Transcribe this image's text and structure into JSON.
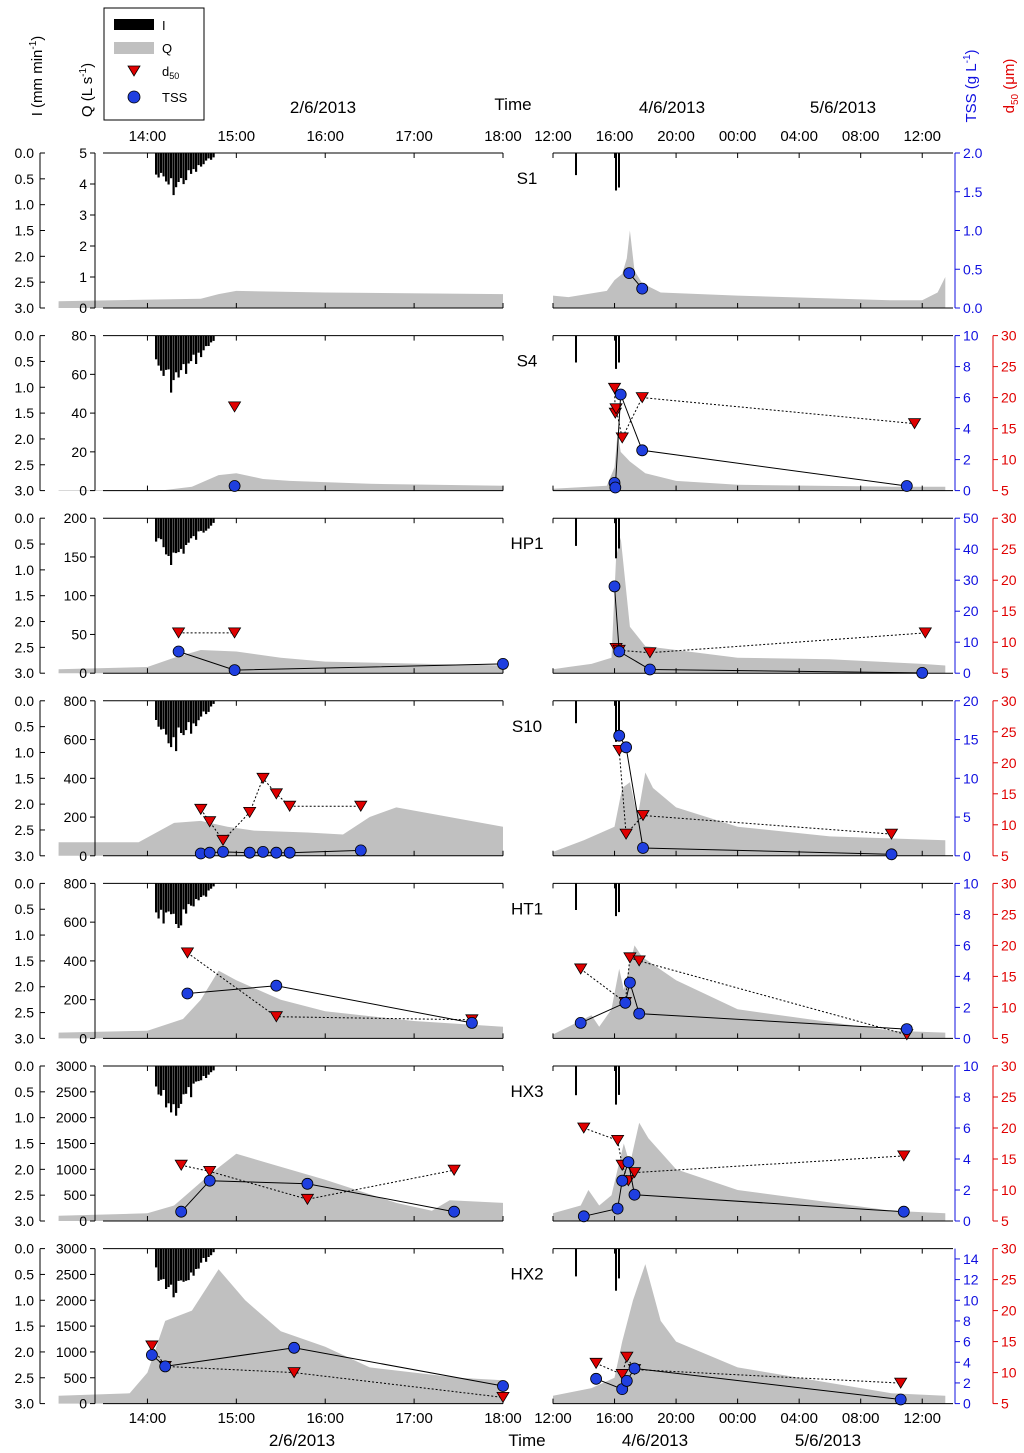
{
  "figure": {
    "dates_left": "2/6/2013",
    "dates_right_a": "4/6/2013",
    "dates_right_b": "5/6/2013",
    "time_label": "Time",
    "axis_labels": {
      "intensity": "I (mm min",
      "intensity_sup": "-1",
      "intensity_close": ")",
      "discharge": "Q (L s",
      "discharge_sup": "-1",
      "discharge_close": ")",
      "tss": "TSS (g L",
      "tss_sup": "-1",
      "tss_close": ")",
      "d50": "d",
      "d50_sub": "50",
      "d50_unit": " (μm)"
    },
    "legend": [
      {
        "key": "I",
        "label": "I"
      },
      {
        "key": "Q",
        "label": "Q"
      },
      {
        "key": "d50",
        "label": "d",
        "sub": "50"
      },
      {
        "key": "TSS",
        "label": "TSS"
      }
    ],
    "left_time_ticks": [
      "14:00",
      "15:00",
      "16:00",
      "17:00",
      "18:00"
    ],
    "right_time_ticks": [
      "12:00",
      "16:00",
      "20:00",
      "00:00",
      "04:00",
      "08:00",
      "12:00"
    ],
    "intensity_ticks": [
      "0.0",
      "0.5",
      "1.0",
      "1.5",
      "2.0",
      "2.5",
      "3.0"
    ],
    "colors": {
      "rain": "#000000",
      "flow": "#c0c0c0",
      "tss": "#1010e0",
      "d50": "#e00000"
    }
  },
  "chart_data": [
    {
      "type": "area",
      "site": "S1",
      "q_ticks": [
        "0",
        "1",
        "2",
        "3",
        "4",
        "5"
      ],
      "qmax": 5,
      "tss_ticks": [
        "0.0",
        "0.5",
        "1.0",
        "1.5",
        "2.0"
      ],
      "tssmax": 2,
      "d50_ticks": [],
      "tss_left": [],
      "tss_right": [
        [
          16.95,
          0.45
        ],
        [
          17.8,
          0.25
        ]
      ],
      "d50_left": [],
      "d50_right": [],
      "flow_left": [
        [
          13.0,
          0.22
        ],
        [
          14.6,
          0.3
        ],
        [
          14.8,
          0.45
        ],
        [
          15.0,
          0.55
        ],
        [
          16.0,
          0.5
        ],
        [
          18.0,
          0.45
        ]
      ],
      "flow_right": [
        [
          12.0,
          0.4
        ],
        [
          13.0,
          0.35
        ],
        [
          15.5,
          0.55
        ],
        [
          16.0,
          0.9
        ],
        [
          16.5,
          1.1
        ],
        [
          16.8,
          1.6
        ],
        [
          17.0,
          2.5
        ],
        [
          17.3,
          1.2
        ],
        [
          17.8,
          0.8
        ],
        [
          19.0,
          0.5
        ],
        [
          24.0,
          0.4
        ],
        [
          34.0,
          0.25
        ],
        [
          36.0,
          0.25
        ],
        [
          37.0,
          0.5
        ],
        [
          37.5,
          1.0
        ]
      ]
    },
    {
      "type": "area",
      "site": "S4",
      "q_ticks": [
        "0",
        "20",
        "40",
        "60",
        "80"
      ],
      "qmax": 80,
      "tss_ticks": [
        "0",
        "2",
        "4",
        "6",
        "8",
        "10"
      ],
      "tssmax": 10,
      "d50_ticks": [
        "5",
        "10",
        "15",
        "20",
        "25",
        "30"
      ],
      "tss_left": [
        [
          14.98,
          0.3
        ]
      ],
      "tss_right": [
        [
          16.0,
          0.5
        ],
        [
          16.05,
          0.2
        ],
        [
          16.4,
          6.2
        ],
        [
          17.8,
          2.6
        ],
        [
          35.0,
          0.3
        ]
      ],
      "d50_left": [
        [
          14.98,
          18.5
        ]
      ],
      "d50_right": [
        [
          16.0,
          21.5
        ],
        [
          16.05,
          17.5
        ],
        [
          16.1,
          18.2
        ],
        [
          16.5,
          13.5
        ],
        [
          17.8,
          20.0
        ],
        [
          35.5,
          15.8
        ]
      ],
      "flow_left": [
        [
          13.0,
          0.3
        ],
        [
          14.2,
          0.3
        ],
        [
          14.5,
          2.0
        ],
        [
          14.8,
          8.0
        ],
        [
          15.0,
          9.0
        ],
        [
          15.3,
          6.0
        ],
        [
          15.6,
          5.0
        ],
        [
          16.5,
          3.5
        ],
        [
          18.0,
          2.5
        ]
      ],
      "flow_right": [
        [
          12.0,
          1.0
        ],
        [
          15.5,
          2.5
        ],
        [
          16.0,
          12.0
        ],
        [
          16.2,
          30.0
        ],
        [
          16.4,
          20.0
        ],
        [
          17.0,
          15.0
        ],
        [
          18.0,
          9.0
        ],
        [
          20.0,
          5.0
        ],
        [
          24.0,
          3.0
        ],
        [
          34.0,
          2.0
        ],
        [
          37.5,
          2.0
        ]
      ]
    },
    {
      "type": "area",
      "site": "HP1",
      "q_ticks": [
        "0",
        "50",
        "100",
        "150",
        "200"
      ],
      "qmax": 200,
      "tss_ticks": [
        "0",
        "10",
        "20",
        "30",
        "40",
        "50"
      ],
      "tssmax": 50,
      "d50_ticks": [
        "5",
        "10",
        "15",
        "20",
        "25",
        "30"
      ],
      "tss_left": [
        [
          14.35,
          7.0
        ],
        [
          14.98,
          1.0
        ],
        [
          18.0,
          3.0
        ]
      ],
      "tss_right": [
        [
          16.0,
          28.0
        ],
        [
          16.3,
          7.0
        ],
        [
          18.3,
          1.2
        ],
        [
          36.0,
          0.1
        ]
      ],
      "d50_left": [
        [
          14.35,
          11.5
        ],
        [
          14.98,
          11.5
        ]
      ],
      "d50_right": [
        [
          16.1,
          9.0
        ],
        [
          16.3,
          8.7
        ],
        [
          18.3,
          8.3
        ],
        [
          36.2,
          11.5
        ]
      ],
      "flow_left": [
        [
          13.0,
          5.0
        ],
        [
          14.0,
          8.0
        ],
        [
          14.3,
          20.0
        ],
        [
          14.6,
          30.0
        ],
        [
          15.0,
          28.0
        ],
        [
          15.5,
          20.0
        ],
        [
          16.0,
          15.0
        ],
        [
          18.0,
          10.0
        ]
      ],
      "flow_right": [
        [
          12.0,
          5.0
        ],
        [
          13.0,
          8.0
        ],
        [
          14.5,
          12.0
        ],
        [
          15.8,
          20.0
        ],
        [
          16.1,
          150.0
        ],
        [
          16.4,
          175.0
        ],
        [
          17.0,
          60.0
        ],
        [
          18.0,
          35.0
        ],
        [
          24.0,
          20.0
        ],
        [
          30.0,
          18.0
        ],
        [
          36.0,
          12.0
        ],
        [
          37.5,
          10.0
        ]
      ]
    },
    {
      "type": "area",
      "site": "S10",
      "q_ticks": [
        "0",
        "200",
        "400",
        "600",
        "800"
      ],
      "qmax": 800,
      "tss_ticks": [
        "0",
        "5",
        "10",
        "15",
        "20"
      ],
      "tssmax": 20,
      "d50_ticks": [
        "5",
        "10",
        "15",
        "20",
        "25",
        "30"
      ],
      "tss_left": [
        [
          14.6,
          0.3
        ],
        [
          14.7,
          0.4
        ],
        [
          14.85,
          0.5
        ],
        [
          15.15,
          0.4
        ],
        [
          15.3,
          0.5
        ],
        [
          15.45,
          0.4
        ],
        [
          15.6,
          0.4
        ],
        [
          16.4,
          0.7
        ]
      ],
      "tss_right": [
        [
          16.3,
          15.5
        ],
        [
          16.75,
          14.0
        ],
        [
          17.85,
          1.0
        ],
        [
          34.0,
          0.2
        ]
      ],
      "d50_left": [
        [
          14.6,
          12.5
        ],
        [
          14.7,
          10.5
        ],
        [
          14.85,
          7.5
        ],
        [
          15.15,
          12.0
        ],
        [
          15.3,
          17.5
        ],
        [
          15.45,
          15.0
        ],
        [
          15.6,
          13.0
        ],
        [
          16.4,
          13.0
        ]
      ],
      "d50_right": [
        [
          16.3,
          22.0
        ],
        [
          16.75,
          8.5
        ],
        [
          17.85,
          11.5
        ],
        [
          34.0,
          8.5
        ]
      ],
      "flow_left": [
        [
          13.0,
          70.0
        ],
        [
          13.9,
          70.0
        ],
        [
          14.3,
          170.0
        ],
        [
          14.6,
          180.0
        ],
        [
          14.9,
          150.0
        ],
        [
          15.2,
          130.0
        ],
        [
          15.8,
          120.0
        ],
        [
          16.2,
          110.0
        ],
        [
          16.5,
          200.0
        ],
        [
          16.8,
          250.0
        ],
        [
          18.0,
          150.0
        ]
      ],
      "flow_right": [
        [
          12.0,
          20.0
        ],
        [
          14.0,
          80.0
        ],
        [
          16.0,
          150.0
        ],
        [
          16.5,
          350.0
        ],
        [
          17.0,
          380.0
        ],
        [
          17.5,
          200.0
        ],
        [
          18.0,
          430.0
        ],
        [
          18.5,
          350.0
        ],
        [
          20.0,
          250.0
        ],
        [
          24.0,
          150.0
        ],
        [
          30.0,
          100.0
        ],
        [
          37.5,
          80.0
        ]
      ]
    },
    {
      "type": "area",
      "site": "HT1",
      "q_ticks": [
        "0",
        "200",
        "400",
        "600",
        "800"
      ],
      "qmax": 800,
      "tss_ticks": [
        "0",
        "2",
        "4",
        "6",
        "8",
        "10"
      ],
      "tssmax": 10,
      "d50_ticks": [
        "5",
        "10",
        "15",
        "20",
        "25",
        "30"
      ],
      "tss_left": [
        [
          14.45,
          2.9
        ],
        [
          15.45,
          3.4
        ],
        [
          17.65,
          1.0
        ]
      ],
      "tss_right": [
        [
          13.8,
          1.0
        ],
        [
          16.7,
          2.3
        ],
        [
          17.0,
          3.6
        ],
        [
          17.6,
          1.6
        ],
        [
          35.0,
          0.6
        ]
      ],
      "d50_left": [
        [
          14.45,
          18.8
        ],
        [
          15.45,
          8.5
        ],
        [
          17.65,
          8.0
        ]
      ],
      "d50_right": [
        [
          13.8,
          16.2
        ],
        [
          16.7,
          10.8
        ],
        [
          17.0,
          18.0
        ],
        [
          17.6,
          17.5
        ],
        [
          35.0,
          5.6
        ]
      ],
      "flow_left": [
        [
          13.0,
          30.0
        ],
        [
          14.0,
          40.0
        ],
        [
          14.4,
          100.0
        ],
        [
          14.6,
          200.0
        ],
        [
          14.8,
          350.0
        ],
        [
          15.0,
          300.0
        ],
        [
          15.5,
          200.0
        ],
        [
          16.0,
          140.0
        ],
        [
          17.0,
          90.0
        ],
        [
          18.0,
          60.0
        ]
      ],
      "flow_right": [
        [
          12.0,
          20.0
        ],
        [
          13.5,
          80.0
        ],
        [
          14.5,
          120.0
        ],
        [
          15.0,
          60.0
        ],
        [
          15.8,
          150.0
        ],
        [
          16.3,
          360.0
        ],
        [
          16.6,
          250.0
        ],
        [
          17.3,
          480.0
        ],
        [
          17.8,
          420.0
        ],
        [
          20.0,
          300.0
        ],
        [
          24.0,
          150.0
        ],
        [
          34.0,
          40.0
        ],
        [
          37.5,
          30.0
        ]
      ]
    },
    {
      "type": "area",
      "site": "HX3",
      "q_ticks": [
        "0",
        "500",
        "1000",
        "1500",
        "2000",
        "2500",
        "3000"
      ],
      "qmax": 3000,
      "tss_ticks": [
        "0",
        "2",
        "4",
        "6",
        "8",
        "10"
      ],
      "tssmax": 10,
      "d50_ticks": [
        "5",
        "10",
        "15",
        "20",
        "25",
        "30"
      ],
      "tss_left": [
        [
          14.38,
          0.6
        ],
        [
          14.7,
          2.6
        ],
        [
          15.8,
          2.4
        ],
        [
          17.45,
          0.6
        ]
      ],
      "tss_right": [
        [
          14.0,
          0.3
        ],
        [
          16.2,
          0.8
        ],
        [
          16.5,
          2.6
        ],
        [
          16.9,
          3.8
        ],
        [
          17.3,
          1.7
        ],
        [
          34.8,
          0.6
        ]
      ],
      "d50_left": [
        [
          14.38,
          14.0
        ],
        [
          14.7,
          13.0
        ],
        [
          15.8,
          8.5
        ],
        [
          17.45,
          13.2
        ]
      ],
      "d50_right": [
        [
          14.0,
          20.0
        ],
        [
          16.2,
          18.0
        ],
        [
          16.5,
          14.0
        ],
        [
          16.9,
          11.5
        ],
        [
          17.3,
          12.8
        ],
        [
          34.8,
          15.5
        ]
      ],
      "flow_left": [
        [
          13.0,
          100.0
        ],
        [
          14.0,
          150.0
        ],
        [
          14.3,
          300.0
        ],
        [
          14.7,
          900.0
        ],
        [
          15.0,
          1300.0
        ],
        [
          15.4,
          1100.0
        ],
        [
          16.0,
          800.0
        ],
        [
          16.8,
          350.0
        ],
        [
          17.2,
          200.0
        ],
        [
          17.4,
          400.0
        ],
        [
          18.0,
          350.0
        ]
      ],
      "flow_right": [
        [
          12.0,
          150.0
        ],
        [
          13.8,
          300.0
        ],
        [
          14.3,
          600.0
        ],
        [
          15.0,
          300.0
        ],
        [
          15.8,
          500.0
        ],
        [
          16.2,
          1000.0
        ],
        [
          16.6,
          1500.0
        ],
        [
          17.0,
          1100.0
        ],
        [
          17.6,
          1900.0
        ],
        [
          18.2,
          1600.0
        ],
        [
          20.0,
          1000.0
        ],
        [
          24.0,
          600.0
        ],
        [
          34.0,
          200.0
        ],
        [
          37.5,
          150.0
        ]
      ]
    },
    {
      "type": "area",
      "site": "HX2",
      "q_ticks": [
        "0",
        "500",
        "1000",
        "1500",
        "2000",
        "2500",
        "3000"
      ],
      "qmax": 3000,
      "tss_ticks": [
        "0",
        "2",
        "4",
        "6",
        "8",
        "10",
        "12",
        "14"
      ],
      "tssmax": 15,
      "d50_ticks": [
        "5",
        "10",
        "15",
        "20",
        "25",
        "30"
      ],
      "tss_left": [
        [
          14.05,
          4.7
        ],
        [
          14.2,
          3.6
        ],
        [
          15.65,
          5.4
        ],
        [
          18.0,
          1.7
        ]
      ],
      "tss_right": [
        [
          14.8,
          2.4
        ],
        [
          16.5,
          1.4
        ],
        [
          16.8,
          2.2
        ],
        [
          17.3,
          3.4
        ],
        [
          34.6,
          0.4
        ]
      ],
      "d50_left": [
        [
          14.05,
          14.3
        ],
        [
          14.2,
          11.0
        ],
        [
          15.65,
          10.0
        ],
        [
          18.0,
          6.0
        ]
      ],
      "d50_right": [
        [
          14.8,
          11.5
        ],
        [
          16.5,
          9.7
        ],
        [
          16.8,
          12.5
        ],
        [
          17.3,
          10.5
        ],
        [
          34.6,
          8.3
        ]
      ],
      "flow_left": [
        [
          13.0,
          150.0
        ],
        [
          13.8,
          200.0
        ],
        [
          14.0,
          600.0
        ],
        [
          14.2,
          1600.0
        ],
        [
          14.5,
          1800.0
        ],
        [
          14.8,
          2600.0
        ],
        [
          15.1,
          2000.0
        ],
        [
          15.5,
          1400.0
        ],
        [
          16.0,
          1100.0
        ],
        [
          16.5,
          700.0
        ],
        [
          17.5,
          500.0
        ],
        [
          18.0,
          450.0
        ]
      ],
      "flow_right": [
        [
          12.0,
          150.0
        ],
        [
          14.5,
          300.0
        ],
        [
          16.0,
          500.0
        ],
        [
          16.5,
          1200.0
        ],
        [
          17.2,
          2000.0
        ],
        [
          18.0,
          2700.0
        ],
        [
          19.0,
          1600.0
        ],
        [
          20.0,
          1200.0
        ],
        [
          24.0,
          700.0
        ],
        [
          34.0,
          200.0
        ],
        [
          37.5,
          150.0
        ]
      ]
    }
  ]
}
